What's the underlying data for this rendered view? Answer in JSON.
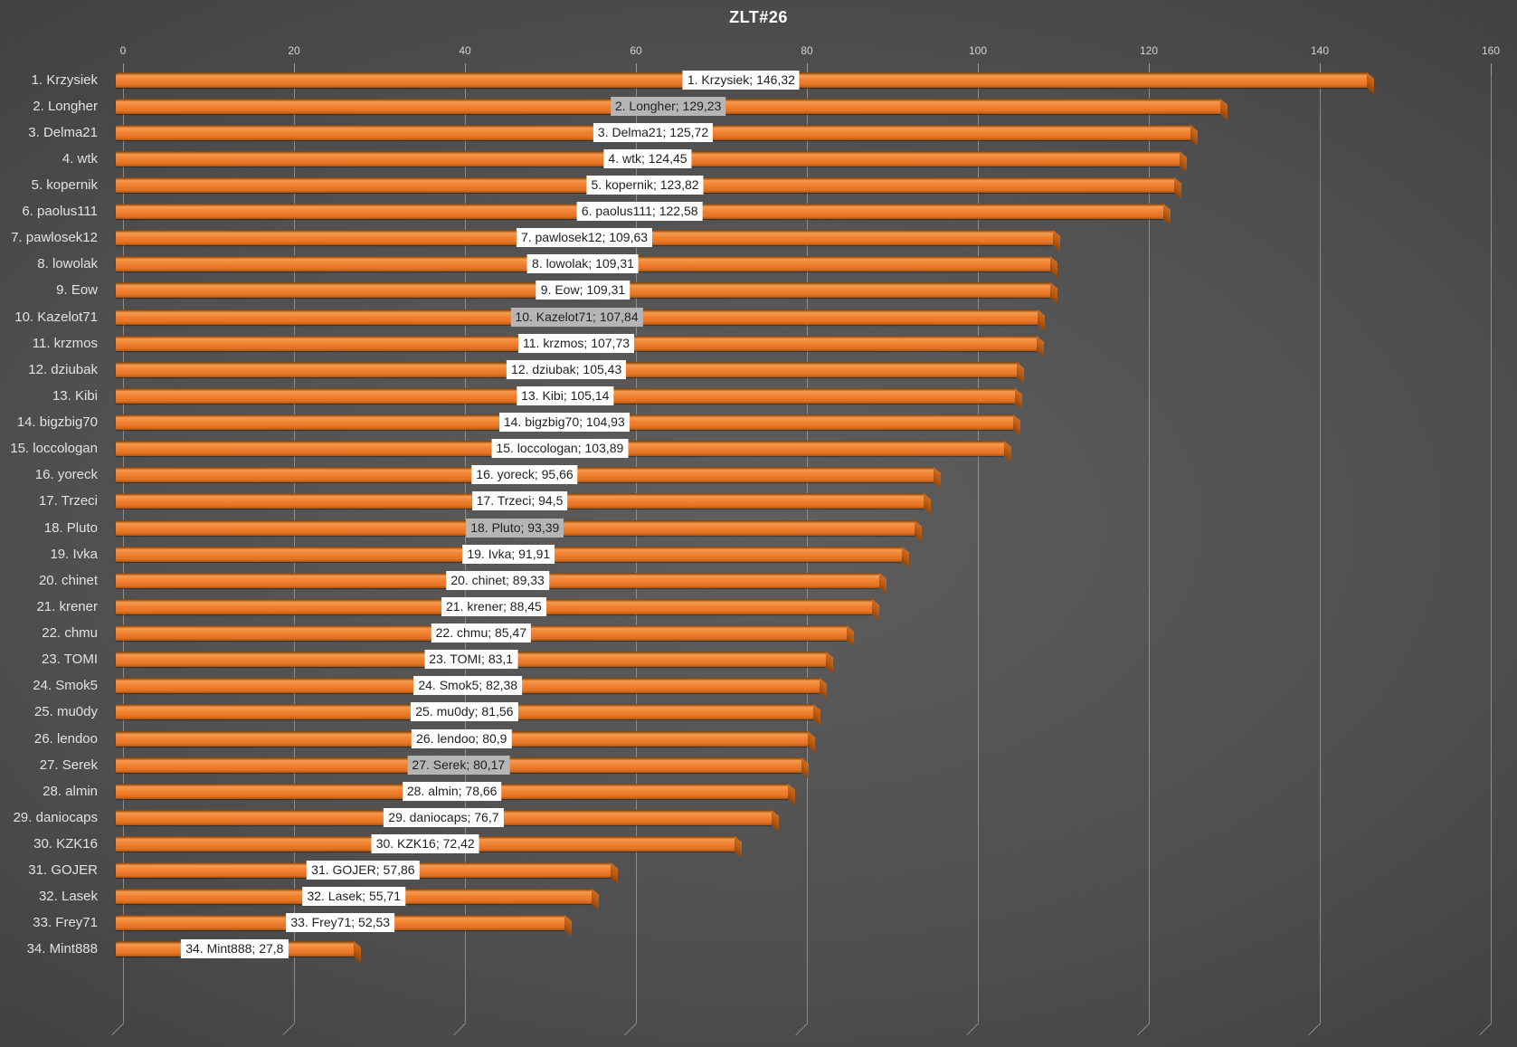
{
  "title": "ZLT#26",
  "axis": {
    "min": 0,
    "max": 160,
    "step": 20,
    "ticks": [
      "0",
      "20",
      "40",
      "60",
      "80",
      "100",
      "120",
      "140",
      "160"
    ]
  },
  "colors": {
    "bar_main": "#ed7d31",
    "bar_highlight": "#f89c53",
    "bar_shadow": "#a35312",
    "bar_end_cap": "#b55a15",
    "label_background": "#ffffff",
    "label_background_highlighted": "#b5b5b5",
    "label_text": "#1f1f1f",
    "gridline": "#9b9b9b",
    "background_center": "#5e5e5e",
    "background_edge": "#232323",
    "title_text": "#ffffff",
    "category_text": "#e2e2e2"
  },
  "chart_data": {
    "type": "bar",
    "orientation": "horizontal",
    "title": "ZLT#26",
    "xlabel": "",
    "ylabel": "",
    "xlim": [
      0,
      160
    ],
    "x_ticks": [
      0,
      20,
      40,
      60,
      80,
      100,
      120,
      140,
      160
    ],
    "grid": true,
    "legend": false,
    "categories": [
      "1. Krzysiek",
      "2. Longher",
      "3. Delma21",
      "4. wtk",
      "5. kopernik",
      "6. paolus111",
      "7. pawlosek12",
      "8. lowolak",
      "9. Eow",
      "10. Kazelot71",
      "11. krzmos",
      "12. dziubak",
      "13. Kibi",
      "14. bigzbig70",
      "15. loccologan",
      "16. yoreck",
      "17. Trzeci",
      "18. Pluto",
      "19. Ivka",
      "20. chinet",
      "21. krener",
      "22. chmu",
      "23. TOMI",
      "24. Smok5",
      "25. mu0dy",
      "26. lendoo",
      "27. Serek",
      "28. almin",
      "29. daniocaps",
      "30. KZK16",
      "31. GOJER",
      "32. Lasek",
      "33. Frey71",
      "34. Mint888"
    ],
    "values": [
      146.32,
      129.23,
      125.72,
      124.45,
      123.82,
      122.58,
      109.63,
      109.31,
      109.31,
      107.84,
      107.73,
      105.43,
      105.14,
      104.93,
      103.89,
      95.66,
      94.5,
      93.39,
      91.91,
      89.33,
      88.45,
      85.47,
      83.1,
      82.38,
      81.56,
      80.9,
      80.17,
      78.66,
      76.7,
      72.42,
      57.86,
      55.71,
      52.53,
      27.8
    ],
    "items": [
      {
        "rank": 1,
        "name": "Krzysiek",
        "value": 146.32,
        "category": "1. Krzysiek",
        "label": "1. Krzysiek; 146,32",
        "highlighted": false
      },
      {
        "rank": 2,
        "name": "Longher",
        "value": 129.23,
        "category": "2. Longher",
        "label": "2. Longher; 129,23",
        "highlighted": true
      },
      {
        "rank": 3,
        "name": "Delma21",
        "value": 125.72,
        "category": "3. Delma21",
        "label": "3. Delma21; 125,72",
        "highlighted": false
      },
      {
        "rank": 4,
        "name": "wtk",
        "value": 124.45,
        "category": "4. wtk",
        "label": "4. wtk; 124,45",
        "highlighted": false
      },
      {
        "rank": 5,
        "name": "kopernik",
        "value": 123.82,
        "category": "5. kopernik",
        "label": "5. kopernik; 123,82",
        "highlighted": false
      },
      {
        "rank": 6,
        "name": "paolus111",
        "value": 122.58,
        "category": "6. paolus111",
        "label": "6. paolus111; 122,58",
        "highlighted": false
      },
      {
        "rank": 7,
        "name": "pawlosek12",
        "value": 109.63,
        "category": "7. pawlosek12",
        "label": "7. pawlosek12; 109,63",
        "highlighted": false
      },
      {
        "rank": 8,
        "name": "lowolak",
        "value": 109.31,
        "category": "8. lowolak",
        "label": "8. lowolak; 109,31",
        "highlighted": false
      },
      {
        "rank": 9,
        "name": "Eow",
        "value": 109.31,
        "category": "9. Eow",
        "label": "9. Eow; 109,31",
        "highlighted": false
      },
      {
        "rank": 10,
        "name": "Kazelot71",
        "value": 107.84,
        "category": "10. Kazelot71",
        "label": "10. Kazelot71; 107,84",
        "highlighted": true
      },
      {
        "rank": 11,
        "name": "krzmos",
        "value": 107.73,
        "category": "11. krzmos",
        "label": "11. krzmos; 107,73",
        "highlighted": false
      },
      {
        "rank": 12,
        "name": "dziubak",
        "value": 105.43,
        "category": "12. dziubak",
        "label": "12. dziubak; 105,43",
        "highlighted": false
      },
      {
        "rank": 13,
        "name": "Kibi",
        "value": 105.14,
        "category": "13. Kibi",
        "label": "13. Kibi; 105,14",
        "highlighted": false
      },
      {
        "rank": 14,
        "name": "bigzbig70",
        "value": 104.93,
        "category": "14. bigzbig70",
        "label": "14. bigzbig70; 104,93",
        "highlighted": false
      },
      {
        "rank": 15,
        "name": "loccologan",
        "value": 103.89,
        "category": "15. loccologan",
        "label": "15. loccologan; 103,89",
        "highlighted": false
      },
      {
        "rank": 16,
        "name": "yoreck",
        "value": 95.66,
        "category": "16. yoreck",
        "label": "16. yoreck; 95,66",
        "highlighted": false
      },
      {
        "rank": 17,
        "name": "Trzeci",
        "value": 94.5,
        "category": "17. Trzeci",
        "label": "17. Trzeci; 94,5",
        "highlighted": false
      },
      {
        "rank": 18,
        "name": "Pluto",
        "value": 93.39,
        "category": "18. Pluto",
        "label": "18. Pluto; 93,39",
        "highlighted": true
      },
      {
        "rank": 19,
        "name": "Ivka",
        "value": 91.91,
        "category": "19. Ivka",
        "label": "19. Ivka; 91,91",
        "highlighted": false
      },
      {
        "rank": 20,
        "name": "chinet",
        "value": 89.33,
        "category": "20. chinet",
        "label": "20. chinet; 89,33",
        "highlighted": false
      },
      {
        "rank": 21,
        "name": "krener",
        "value": 88.45,
        "category": "21. krener",
        "label": "21. krener; 88,45",
        "highlighted": false
      },
      {
        "rank": 22,
        "name": "chmu",
        "value": 85.47,
        "category": "22. chmu",
        "label": "22. chmu; 85,47",
        "highlighted": false
      },
      {
        "rank": 23,
        "name": "TOMI",
        "value": 83.1,
        "category": "23. TOMI",
        "label": "23. TOMI; 83,1",
        "highlighted": false
      },
      {
        "rank": 24,
        "name": "Smok5",
        "value": 82.38,
        "category": "24. Smok5",
        "label": "24. Smok5; 82,38",
        "highlighted": false
      },
      {
        "rank": 25,
        "name": "mu0dy",
        "value": 81.56,
        "category": "25. mu0dy",
        "label": "25. mu0dy; 81,56",
        "highlighted": false
      },
      {
        "rank": 26,
        "name": "lendoo",
        "value": 80.9,
        "category": "26. lendoo",
        "label": "26. lendoo; 80,9",
        "highlighted": false
      },
      {
        "rank": 27,
        "name": "Serek",
        "value": 80.17,
        "category": "27. Serek",
        "label": "27. Serek; 80,17",
        "highlighted": true
      },
      {
        "rank": 28,
        "name": "almin",
        "value": 78.66,
        "category": "28. almin",
        "label": "28. almin; 78,66",
        "highlighted": false
      },
      {
        "rank": 29,
        "name": "daniocaps",
        "value": 76.7,
        "category": "29. daniocaps",
        "label": "29. daniocaps; 76,7",
        "highlighted": false
      },
      {
        "rank": 30,
        "name": "KZK16",
        "value": 72.42,
        "category": "30. KZK16",
        "label": "30. KZK16; 72,42",
        "highlighted": false
      },
      {
        "rank": 31,
        "name": "GOJER",
        "value": 57.86,
        "category": "31. GOJER",
        "label": "31. GOJER; 57,86",
        "highlighted": false
      },
      {
        "rank": 32,
        "name": "Lasek",
        "value": 55.71,
        "category": "32. Lasek",
        "label": "32. Lasek; 55,71",
        "highlighted": false
      },
      {
        "rank": 33,
        "name": "Frey71",
        "value": 52.53,
        "category": "33. Frey71",
        "label": "33. Frey71; 52,53",
        "highlighted": false
      },
      {
        "rank": 34,
        "name": "Mint888",
        "value": 27.8,
        "category": "34. Mint888",
        "label": "34. Mint888; 27,8",
        "highlighted": false
      }
    ]
  }
}
